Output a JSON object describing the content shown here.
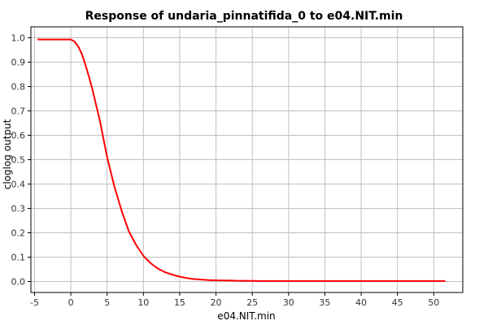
{
  "chart_data": {
    "type": "line",
    "title": "Response of undaria_pinnatifida_0 to e04.NIT.min",
    "xlabel": "e04.NIT.min",
    "ylabel": "cloglog output",
    "xlim": [
      -5.5,
      54
    ],
    "ylim": [
      -0.045,
      1.045
    ],
    "xticks": [
      -5,
      0,
      5,
      10,
      15,
      20,
      25,
      30,
      35,
      40,
      45,
      50
    ],
    "yticks": [
      0.0,
      0.1,
      0.2,
      0.3,
      0.4,
      0.5,
      0.6,
      0.7,
      0.8,
      0.9,
      1.0
    ],
    "grid": true,
    "series": [
      {
        "color": "#ff0000",
        "x": [
          -4.5,
          -2,
          -0.5,
          0,
          0.5,
          1,
          1.5,
          2,
          2.5,
          3,
          4,
          5,
          6,
          7,
          8,
          9,
          10,
          11,
          12,
          13,
          14,
          15,
          16,
          17,
          18,
          19,
          20,
          21,
          22,
          23,
          24,
          26,
          30,
          35,
          40,
          45,
          51.5
        ],
        "y": [
          0.993,
          0.993,
          0.993,
          0.993,
          0.985,
          0.965,
          0.935,
          0.89,
          0.84,
          0.785,
          0.66,
          0.51,
          0.39,
          0.29,
          0.205,
          0.15,
          0.105,
          0.075,
          0.053,
          0.038,
          0.028,
          0.02,
          0.014,
          0.01,
          0.008,
          0.006,
          0.005,
          0.004,
          0.004,
          0.003,
          0.003,
          0.002,
          0.002,
          0.002,
          0.002,
          0.002,
          0.002
        ]
      }
    ]
  }
}
